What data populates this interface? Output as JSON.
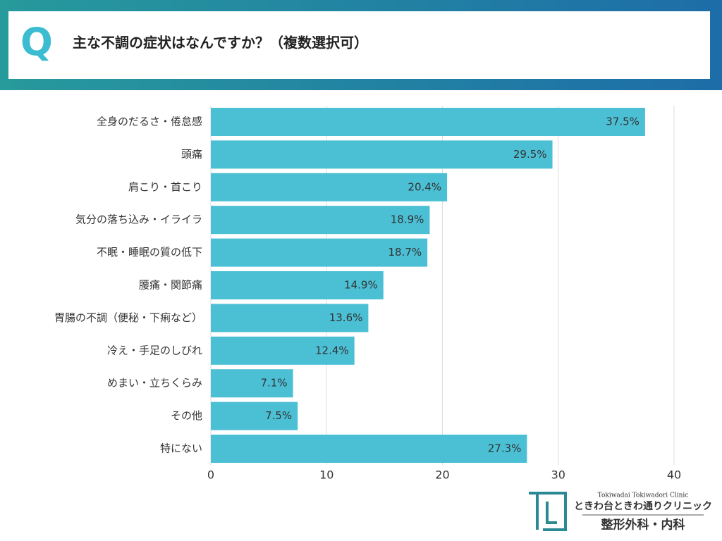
{
  "header": {
    "mark": "Q"
  },
  "chart_data": {
    "type": "bar",
    "orientation": "horizontal",
    "title": "主な不調の症状はなんですか？（複数選択可）",
    "categories": [
      "全身のだるさ・倦怠感",
      "頭痛",
      "肩こり・首こり",
      "気分の落ち込み・イライラ",
      "不眠・睡眠の質の低下",
      "腰痛・関節痛",
      "胃腸の不調（便秘・下痢など）",
      "冷え・手足のしびれ",
      "めまい・立ちくらみ",
      "その他",
      "特にない"
    ],
    "values": [
      37.5,
      29.5,
      20.4,
      18.9,
      18.7,
      14.9,
      13.6,
      12.4,
      7.1,
      7.5,
      27.3
    ],
    "value_labels": [
      "37.5%",
      "29.5%",
      "20.4%",
      "18.9%",
      "18.7%",
      "14.9%",
      "13.6%",
      "12.4%",
      "7.1%",
      "7.5%",
      "27.3%"
    ],
    "color": "#4bbfd4",
    "xlim": [
      0,
      40
    ],
    "xticks": [
      0,
      10,
      20,
      30,
      40
    ],
    "grid": true
  },
  "logo": {
    "english": "Tokiwadai Tokiwadori Clinic",
    "name": "ときわ台ときわ通りクリニック",
    "departments": "整形外科・内科"
  }
}
